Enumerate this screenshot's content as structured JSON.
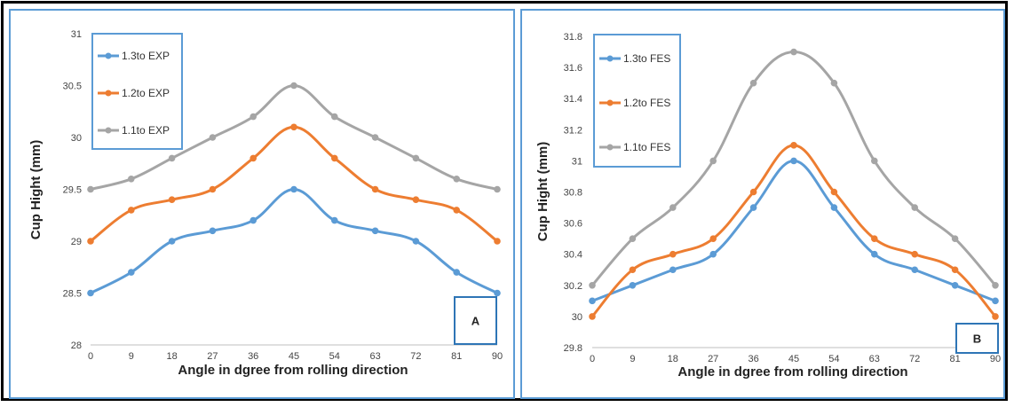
{
  "chart_data": [
    {
      "id": "A",
      "type": "line",
      "panel_label": "A",
      "xlabel": "Angle in dgree from rolling direction",
      "ylabel": "Cup Hight (mm)",
      "x": [
        0,
        9,
        18,
        27,
        36,
        45,
        54,
        63,
        72,
        81,
        90
      ],
      "ylim": [
        28,
        31
      ],
      "yticks": [
        28,
        28.5,
        29,
        29.5,
        30,
        30.5,
        31
      ],
      "ytick_labels": [
        "28",
        "28.5",
        "29",
        "29.5",
        "30",
        "30.5",
        "31"
      ],
      "grid": false,
      "legend_position": "top-left",
      "series": [
        {
          "name": "1.3to EXP",
          "color": "#5b9bd5",
          "values": [
            28.5,
            28.7,
            29.0,
            29.1,
            29.2,
            29.5,
            29.2,
            29.1,
            29.0,
            28.7,
            28.5
          ]
        },
        {
          "name": "1.2to  EXP",
          "color": "#ed7d31",
          "values": [
            29.0,
            29.3,
            29.4,
            29.5,
            29.8,
            30.1,
            29.8,
            29.5,
            29.4,
            29.3,
            29.0
          ]
        },
        {
          "name": "1.1to EXP",
          "color": "#a5a5a5",
          "values": [
            29.5,
            29.6,
            29.8,
            30.0,
            30.2,
            30.5,
            30.2,
            30.0,
            29.8,
            29.6,
            29.5
          ]
        }
      ]
    },
    {
      "id": "B",
      "type": "line",
      "panel_label": "B",
      "xlabel": "Angle in dgree from rolling direction",
      "ylabel": "Cup Hight (mm)",
      "x": [
        0,
        9,
        18,
        27,
        36,
        45,
        54,
        63,
        72,
        81,
        90
      ],
      "ylim": [
        29.8,
        31.8
      ],
      "yticks": [
        29.8,
        30,
        30.2,
        30.4,
        30.6,
        30.8,
        31,
        31.2,
        31.4,
        31.6,
        31.8
      ],
      "ytick_labels": [
        "29.8",
        "30",
        "30.2",
        "30.4",
        "30.6",
        "30.8",
        "31",
        "31.2",
        "31.4",
        "31.6",
        "31.8"
      ],
      "grid": false,
      "legend_position": "top-left",
      "series": [
        {
          "name": "1.3to FES",
          "color": "#5b9bd5",
          "values": [
            30.1,
            30.2,
            30.3,
            30.4,
            30.7,
            31.0,
            30.7,
            30.4,
            30.3,
            30.2,
            30.1
          ]
        },
        {
          "name": "1.2to  FES",
          "color": "#ed7d31",
          "values": [
            30.0,
            30.3,
            30.4,
            30.5,
            30.8,
            31.1,
            30.8,
            30.5,
            30.4,
            30.3,
            30.0
          ]
        },
        {
          "name": "1.1to FES",
          "color": "#a5a5a5",
          "values": [
            30.2,
            30.5,
            30.7,
            31.0,
            31.5,
            31.7,
            31.5,
            31.0,
            30.7,
            30.5,
            30.2
          ]
        }
      ]
    }
  ]
}
